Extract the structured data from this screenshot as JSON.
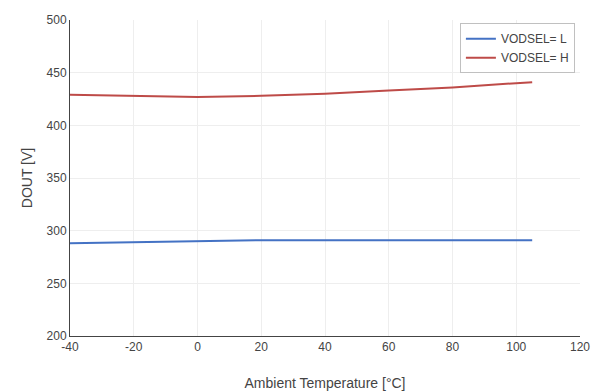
{
  "chart_data": {
    "type": "line",
    "x": [
      -40,
      -20,
      0,
      20,
      40,
      60,
      80,
      105
    ],
    "series": [
      {
        "name": "VODSEL= L",
        "color": "#4472C4",
        "values": [
          288,
          289,
          290,
          291,
          291,
          291,
          291,
          291
        ]
      },
      {
        "name": "VODSEL= H",
        "color": "#BE4B48",
        "values": [
          429,
          428,
          427,
          428,
          430,
          433,
          436,
          441
        ]
      }
    ],
    "xlabel": "Ambient Temperature [°C]",
    "ylabel": "DOUT [V]",
    "xlim": [
      -40,
      120
    ],
    "ylim": [
      200,
      500
    ],
    "xticks": [
      -40,
      -20,
      0,
      20,
      40,
      60,
      80,
      100,
      120
    ],
    "yticks": [
      200,
      250,
      300,
      350,
      400,
      450,
      500
    ],
    "grid": true,
    "legend": "upper right"
  }
}
